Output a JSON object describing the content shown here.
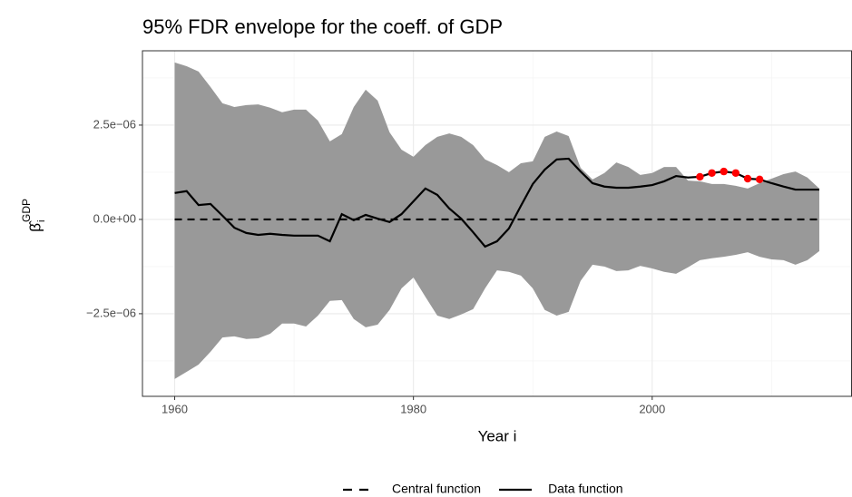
{
  "chart_data": {
    "type": "line",
    "title": "95% FDR envelope for the coeff. of GDP",
    "xlabel": "Year i",
    "ylabel": {
      "symbol": "β̂",
      "subscript": "i",
      "superscript": "GDP"
    },
    "x": [
      1960,
      1961,
      1962,
      1963,
      1964,
      1965,
      1966,
      1967,
      1968,
      1969,
      1970,
      1971,
      1972,
      1973,
      1974,
      1975,
      1976,
      1977,
      1978,
      1979,
      1980,
      1981,
      1982,
      1983,
      1984,
      1985,
      1986,
      1987,
      1988,
      1989,
      1990,
      1991,
      1992,
      1993,
      1994,
      1995,
      1996,
      1997,
      1998,
      1999,
      2000,
      2001,
      2002,
      2003,
      2004,
      2005,
      2006,
      2007,
      2008,
      2009,
      2010,
      2011,
      2012,
      2013,
      2014
    ],
    "band": {
      "color": "#999999",
      "upper": [
        4.16e-06,
        4.06e-06,
        3.92e-06,
        3.51e-06,
        3.08e-06,
        2.98e-06,
        3.03e-06,
        3.05e-06,
        2.96e-06,
        2.84e-06,
        2.91e-06,
        2.91e-06,
        2.62e-06,
        2.07e-06,
        2.26e-06,
        2.98e-06,
        3.44e-06,
        3.15e-06,
        2.31e-06,
        1.85e-06,
        1.66e-06,
        1.97e-06,
        2.19e-06,
        2.28e-06,
        2.19e-06,
        1.97e-06,
        1.59e-06,
        1.44e-06,
        1.25e-06,
        1.49e-06,
        1.54e-06,
        2.19e-06,
        2.33e-06,
        2.21e-06,
        1.37e-06,
        1.06e-06,
        1.23e-06,
        1.51e-06,
        1.39e-06,
        1.18e-06,
        1.23e-06,
        1.39e-06,
        1.39e-06,
        1.03e-06,
        1.01e-06,
        9.4e-07,
        9.4e-07,
        8.9e-07,
        8.2e-07,
        9.6e-07,
        1.08e-06,
        1.2e-06,
        1.27e-06,
        1.11e-06,
        8.2e-07
      ],
      "lower": [
        -4.23e-06,
        -4.04e-06,
        -3.85e-06,
        -3.51e-06,
        -3.13e-06,
        -3.1e-06,
        -3.17e-06,
        -3.15e-06,
        -3.03e-06,
        -2.76e-06,
        -2.76e-06,
        -2.84e-06,
        -2.55e-06,
        -2.16e-06,
        -2.14e-06,
        -2.64e-06,
        -2.86e-06,
        -2.79e-06,
        -2.4e-06,
        -1.83e-06,
        -1.54e-06,
        -2.05e-06,
        -2.55e-06,
        -2.64e-06,
        -2.52e-06,
        -2.38e-06,
        -1.83e-06,
        -1.35e-06,
        -1.39e-06,
        -1.49e-06,
        -1.83e-06,
        -2.4e-06,
        -2.55e-06,
        -2.45e-06,
        -1.63e-06,
        -1.2e-06,
        -1.25e-06,
        -1.37e-06,
        -1.35e-06,
        -1.23e-06,
        -1.3e-06,
        -1.39e-06,
        -1.44e-06,
        -1.27e-06,
        -1.08e-06,
        -1.03e-06,
        -9.9e-07,
        -9.4e-07,
        -8.7e-07,
        -9.9e-07,
        -1.06e-06,
        -1.08e-06,
        -1.2e-06,
        -1.08e-06,
        -8.4e-07
      ]
    },
    "series": [
      {
        "name": "Central function",
        "color": "#000000",
        "dash": "dashed",
        "values": [
          0,
          0,
          0,
          0,
          0,
          0,
          0,
          0,
          0,
          0,
          0,
          0,
          0,
          0,
          0,
          0,
          0,
          0,
          0,
          0,
          0,
          0,
          0,
          0,
          0,
          0,
          0,
          0,
          0,
          0,
          0,
          0,
          0,
          0,
          0,
          0,
          0,
          0,
          0,
          0,
          0,
          0,
          0,
          0,
          0,
          0,
          0,
          0,
          0,
          0,
          0,
          0,
          0,
          0,
          0
        ]
      },
      {
        "name": "Data function",
        "color": "#000000",
        "dash": "solid",
        "values": [
          7e-07,
          7.5e-07,
          3.8e-07,
          4.1e-07,
          1e-07,
          -2.2e-07,
          -3.6e-07,
          -4.1e-07,
          -3.8e-07,
          -4.1e-07,
          -4.3e-07,
          -4.3e-07,
          -4.3e-07,
          -5.8e-07,
          1.4e-07,
          -2e-08,
          1.2e-07,
          2e-08,
          -7e-08,
          1.4e-07,
          4.8e-07,
          8.2e-07,
          6.5e-07,
          2.9e-07,
          2e-08,
          -3.4e-07,
          -7.2e-07,
          -5.8e-07,
          -2.4e-07,
          3.6e-07,
          9.4e-07,
          1.32e-06,
          1.59e-06,
          1.61e-06,
          1.27e-06,
          9.6e-07,
          8.7e-07,
          8.4e-07,
          8.4e-07,
          8.7e-07,
          9.1e-07,
          1.01e-06,
          1.15e-06,
          1.11e-06,
          1.13e-06,
          1.23e-06,
          1.27e-06,
          1.23e-06,
          1.08e-06,
          1.06e-06,
          9.6e-07,
          8.7e-07,
          7.9e-07,
          7.9e-07,
          7.9e-07
        ]
      }
    ],
    "points": {
      "color": "#ff0000",
      "x": [
        2004,
        2005,
        2006,
        2007,
        2008,
        2009
      ],
      "values": [
        1.13e-06,
        1.23e-06,
        1.27e-06,
        1.23e-06,
        1.08e-06,
        1.06e-06
      ]
    },
    "xlim": [
      1957.3,
      2016.7
    ],
    "xticks": [
      1960,
      1980,
      2000
    ],
    "minor_xticks": [
      1970,
      1990,
      2010
    ],
    "ylim": [
      -4.69e-06,
      4.47e-06
    ],
    "yticks": [
      {
        "value": -2.5e-06,
        "label": "−2.5e−06"
      },
      {
        "value": 0,
        "label": "0.0e+00"
      },
      {
        "value": 2.5e-06,
        "label": "2.5e−06"
      }
    ],
    "minor_yticks": [
      -3.75e-06,
      -1.25e-06,
      1.25e-06,
      3.75e-06
    ],
    "grid": true,
    "legend": "bottom"
  }
}
